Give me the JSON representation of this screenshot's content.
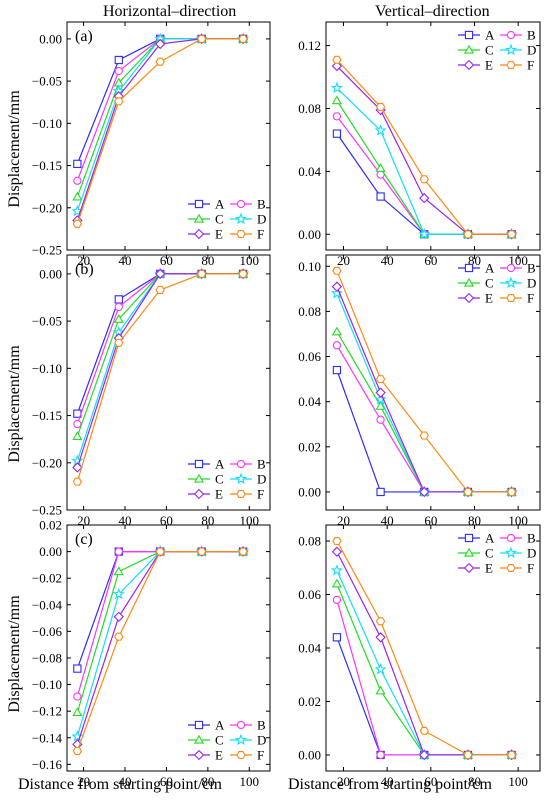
{
  "figure": {
    "col_titles": [
      "Horizontal–direction",
      "Vertical–direction"
    ],
    "ylabel": "Displacement/mm",
    "xlabel": "Distance from starting point/cm"
  },
  "series_style": [
    {
      "name": "A",
      "color": "#2b2bff",
      "marker": "square"
    },
    {
      "name": "B",
      "color": "#ff33ff",
      "marker": "circle"
    },
    {
      "name": "C",
      "color": "#22dd22",
      "marker": "triangle"
    },
    {
      "name": "D",
      "color": "#11ddff",
      "marker": "star"
    },
    {
      "name": "E",
      "color": "#9922ee",
      "marker": "diamond"
    },
    {
      "name": "F",
      "color": "#ff8811",
      "marker": "hexagon"
    }
  ],
  "chart_data": [
    {
      "type": "line",
      "panel_label": "(a)",
      "direction": "Horizontal–direction",
      "x": [
        17,
        37,
        57,
        77,
        97
      ],
      "xlim": [
        12,
        110
      ],
      "xticks": [
        20,
        40,
        60,
        80,
        100
      ],
      "ylim": [
        -0.25,
        0.02
      ],
      "yticks": [
        "0.00",
        "-0.05",
        "-0.10",
        "-0.15",
        "-0.20",
        "-0.25"
      ],
      "legend_position": "bottom-right",
      "series": [
        {
          "name": "A",
          "values": [
            -0.148,
            -0.025,
            0,
            0,
            0
          ]
        },
        {
          "name": "B",
          "values": [
            -0.168,
            -0.038,
            0,
            0,
            0
          ]
        },
        {
          "name": "C",
          "values": [
            -0.187,
            -0.052,
            0,
            0,
            0
          ]
        },
        {
          "name": "D",
          "values": [
            -0.204,
            -0.062,
            0,
            0,
            0
          ]
        },
        {
          "name": "E",
          "values": [
            -0.215,
            -0.068,
            -0.006,
            0,
            0
          ]
        },
        {
          "name": "F",
          "values": [
            -0.219,
            -0.074,
            -0.027,
            0,
            0
          ]
        }
      ]
    },
    {
      "type": "line",
      "panel_label": "",
      "direction": "Vertical–direction",
      "x": [
        17,
        37,
        57,
        77,
        97
      ],
      "xlim": [
        12,
        110
      ],
      "xticks": [
        20,
        40,
        60,
        80,
        100
      ],
      "ylim": [
        -0.01,
        0.135
      ],
      "yticks": [
        "0.00",
        "0.04",
        "0.08",
        "0.12"
      ],
      "legend_position": "top-right",
      "series": [
        {
          "name": "A",
          "values": [
            0.064,
            0.024,
            0,
            0,
            0
          ]
        },
        {
          "name": "B",
          "values": [
            0.075,
            0.038,
            0,
            0,
            0
          ]
        },
        {
          "name": "C",
          "values": [
            0.085,
            0.042,
            0,
            0,
            0
          ]
        },
        {
          "name": "D",
          "values": [
            0.093,
            0.066,
            0,
            0,
            0
          ]
        },
        {
          "name": "E",
          "values": [
            0.107,
            0.079,
            0.023,
            0,
            0
          ]
        },
        {
          "name": "F",
          "values": [
            0.111,
            0.081,
            0.035,
            0,
            0
          ]
        }
      ]
    },
    {
      "type": "line",
      "panel_label": "(b)",
      "direction": "Horizontal–direction",
      "x": [
        17,
        37,
        57,
        77,
        97
      ],
      "xlim": [
        12,
        110
      ],
      "xticks": [
        20,
        40,
        60,
        80,
        100
      ],
      "ylim": [
        -0.25,
        0.02
      ],
      "yticks": [
        "0.00",
        "-0.05",
        "-0.10",
        "-0.15",
        "-0.20",
        "-0.25"
      ],
      "legend_position": "bottom-right",
      "series": [
        {
          "name": "A",
          "values": [
            -0.148,
            -0.027,
            0,
            0,
            0
          ]
        },
        {
          "name": "B",
          "values": [
            -0.159,
            -0.035,
            0,
            0,
            0
          ]
        },
        {
          "name": "C",
          "values": [
            -0.172,
            -0.048,
            0,
            0,
            0
          ]
        },
        {
          "name": "D",
          "values": [
            -0.198,
            -0.062,
            0,
            0,
            0
          ]
        },
        {
          "name": "E",
          "values": [
            -0.205,
            -0.068,
            0,
            0,
            0
          ]
        },
        {
          "name": "F",
          "values": [
            -0.22,
            -0.073,
            -0.017,
            0,
            0
          ]
        }
      ]
    },
    {
      "type": "line",
      "panel_label": "",
      "direction": "Vertical–direction",
      "x": [
        17,
        37,
        57,
        77,
        97
      ],
      "xlim": [
        12,
        110
      ],
      "xticks": [
        20,
        40,
        60,
        80,
        100
      ],
      "ylim": [
        -0.008,
        0.105
      ],
      "yticks": [
        "0.00",
        "0.02",
        "0.04",
        "0.06",
        "0.08",
        "0.10"
      ],
      "legend_position": "top-right",
      "series": [
        {
          "name": "A",
          "values": [
            0.054,
            0,
            0,
            0,
            0
          ]
        },
        {
          "name": "B",
          "values": [
            0.065,
            0.032,
            0,
            0,
            0
          ]
        },
        {
          "name": "C",
          "values": [
            0.071,
            0.038,
            0,
            0,
            0
          ]
        },
        {
          "name": "D",
          "values": [
            0.088,
            0.041,
            0,
            0,
            0
          ]
        },
        {
          "name": "E",
          "values": [
            0.091,
            0.044,
            0,
            0,
            0
          ]
        },
        {
          "name": "F",
          "values": [
            0.098,
            0.05,
            0.025,
            0,
            0
          ]
        }
      ]
    },
    {
      "type": "line",
      "panel_label": "(c)",
      "direction": "Horizontal–direction",
      "x": [
        17,
        37,
        57,
        77,
        97
      ],
      "xlim": [
        12,
        110
      ],
      "xticks": [
        20,
        40,
        60,
        80,
        100
      ],
      "ylim": [
        -0.165,
        0.02
      ],
      "yticks": [
        "0.02",
        "0.00",
        "-0.02",
        "-0.04",
        "-0.06",
        "-0.08",
        "-0.10",
        "-0.12",
        "-0.14",
        "-0.16"
      ],
      "legend_position": "bottom-right",
      "series": [
        {
          "name": "A",
          "values": [
            -0.088,
            0,
            0,
            0,
            0
          ]
        },
        {
          "name": "B",
          "values": [
            -0.109,
            0,
            0,
            0,
            0
          ]
        },
        {
          "name": "C",
          "values": [
            -0.121,
            -0.015,
            0,
            0,
            0
          ]
        },
        {
          "name": "D",
          "values": [
            -0.139,
            -0.032,
            0,
            0,
            0
          ]
        },
        {
          "name": "E",
          "values": [
            -0.145,
            -0.049,
            0,
            0,
            0
          ]
        },
        {
          "name": "F",
          "values": [
            -0.15,
            -0.064,
            0,
            0,
            0
          ]
        }
      ]
    },
    {
      "type": "line",
      "panel_label": "",
      "direction": "Vertical–direction",
      "x": [
        17,
        37,
        57,
        77,
        97
      ],
      "xlim": [
        12,
        110
      ],
      "xticks": [
        20,
        40,
        60,
        80,
        100
      ],
      "ylim": [
        -0.006,
        0.086
      ],
      "yticks": [
        "0.00",
        "0.02",
        "0.04",
        "0.06",
        "0.08"
      ],
      "legend_position": "top-right",
      "series": [
        {
          "name": "A",
          "values": [
            0.044,
            0,
            0,
            0,
            0
          ]
        },
        {
          "name": "B",
          "values": [
            0.058,
            0,
            0,
            0,
            0
          ]
        },
        {
          "name": "C",
          "values": [
            0.064,
            0.024,
            0,
            0,
            0
          ]
        },
        {
          "name": "D",
          "values": [
            0.069,
            0.032,
            0,
            0,
            0
          ]
        },
        {
          "name": "E",
          "values": [
            0.076,
            0.044,
            0,
            0,
            0
          ]
        },
        {
          "name": "F",
          "values": [
            0.08,
            0.05,
            0.009,
            0,
            0
          ]
        }
      ]
    }
  ]
}
